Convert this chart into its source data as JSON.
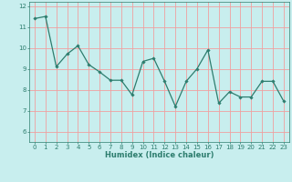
{
  "x": [
    0,
    1,
    2,
    3,
    4,
    5,
    6,
    7,
    8,
    9,
    10,
    11,
    12,
    13,
    14,
    15,
    16,
    17,
    18,
    19,
    20,
    21,
    22,
    23
  ],
  "y": [
    11.4,
    11.5,
    9.1,
    9.7,
    10.1,
    9.2,
    8.85,
    8.45,
    8.45,
    7.75,
    9.35,
    9.5,
    8.4,
    7.2,
    8.4,
    9.0,
    9.9,
    7.35,
    7.9,
    7.65,
    7.65,
    8.4,
    8.4,
    7.45
  ],
  "title": "",
  "xlabel": "Humidex (Indice chaleur)",
  "ylabel": "",
  "ylim": [
    5.5,
    12.2
  ],
  "xlim": [
    -0.5,
    23.5
  ],
  "line_color": "#2d7d6e",
  "marker": "D",
  "marker_size": 1.8,
  "bg_color": "#c8eeee",
  "grid_color": "#f0a0a0",
  "tick_color": "#2d7d6e",
  "label_color": "#2d7d6e",
  "yticks": [
    6,
    7,
    8,
    9,
    10,
    11,
    12
  ],
  "xticks": [
    0,
    1,
    2,
    3,
    4,
    5,
    6,
    7,
    8,
    9,
    10,
    11,
    12,
    13,
    14,
    15,
    16,
    17,
    18,
    19,
    20,
    21,
    22,
    23
  ],
  "tick_fontsize": 5.0,
  "xlabel_fontsize": 6.0,
  "linewidth": 0.9
}
